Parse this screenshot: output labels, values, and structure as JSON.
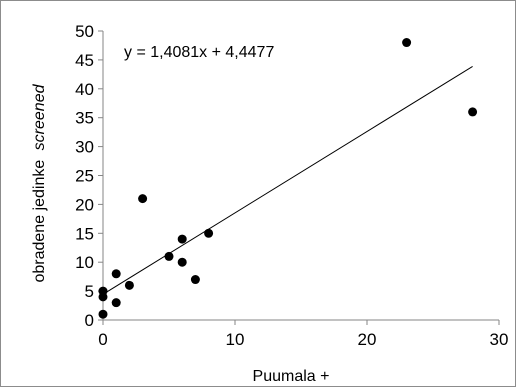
{
  "chart_data": {
    "type": "scatter",
    "title": "",
    "xlabel": "Puumala +",
    "ylabel_main": "obradene jedinke",
    "ylabel_italic": "screened",
    "xlim": [
      0,
      30
    ],
    "ylim": [
      0,
      50
    ],
    "xticks": [
      "0",
      "10",
      "20",
      "30"
    ],
    "yticks": [
      "0",
      "5",
      "10",
      "15",
      "20",
      "25",
      "30",
      "35",
      "40",
      "45",
      "50"
    ],
    "points": [
      {
        "x": 0,
        "y": 1
      },
      {
        "x": 0,
        "y": 4
      },
      {
        "x": 0,
        "y": 5
      },
      {
        "x": 1,
        "y": 3
      },
      {
        "x": 1,
        "y": 8
      },
      {
        "x": 2,
        "y": 6
      },
      {
        "x": 3,
        "y": 21
      },
      {
        "x": 5,
        "y": 11
      },
      {
        "x": 6,
        "y": 10
      },
      {
        "x": 6,
        "y": 14
      },
      {
        "x": 7,
        "y": 7
      },
      {
        "x": 8,
        "y": 15
      },
      {
        "x": 23,
        "y": 48
      },
      {
        "x": 28,
        "y": 36
      }
    ],
    "trendline": {
      "slope": 1.4081,
      "intercept": 4.4477,
      "x_range": [
        0,
        28
      ],
      "equation": "y = 1,4081x + 4,4477"
    },
    "grid": false,
    "legend": "none",
    "colors": {
      "point": "#000000",
      "line": "#000000",
      "axis": "#868686"
    }
  }
}
